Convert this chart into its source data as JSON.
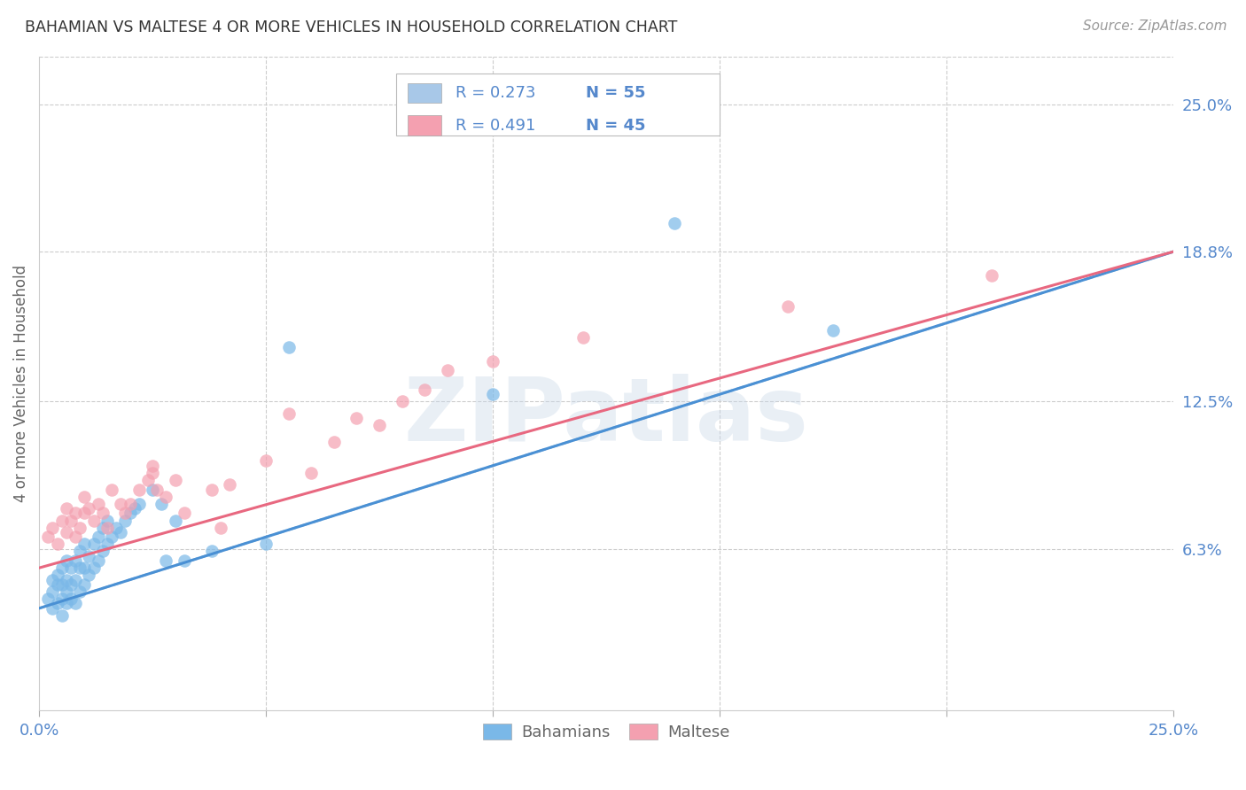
{
  "title": "BAHAMIAN VS MALTESE 4 OR MORE VEHICLES IN HOUSEHOLD CORRELATION CHART",
  "source": "Source: ZipAtlas.com",
  "ylabel": "4 or more Vehicles in Household",
  "xlim": [
    0.0,
    0.25
  ],
  "ylim": [
    -0.005,
    0.27
  ],
  "ytick_positions": [
    0.063,
    0.125,
    0.188,
    0.25
  ],
  "ytick_labels": [
    "6.3%",
    "12.5%",
    "18.8%",
    "25.0%"
  ],
  "legend_entries": [
    {
      "r_val": "R = 0.273",
      "n_val": "N = 55",
      "color": "#a8c8e8"
    },
    {
      "r_val": "R = 0.491",
      "n_val": "N = 45",
      "color": "#f4a0b0"
    }
  ],
  "watermark": "ZIPatlas",
  "bahamian_color": "#7ab8e8",
  "maltese_color": "#f4a0b0",
  "trend_bahamian_color": "#4a90d4",
  "trend_maltese_color": "#e86880",
  "trend_dashed_color": "#90b8d8",
  "background_color": "#ffffff",
  "grid_color": "#cccccc",
  "title_color": "#333333",
  "source_color": "#999999",
  "axis_label_color": "#666666",
  "tick_color": "#5588cc",
  "blue_trend_x0": 0.0,
  "blue_trend_y0": 0.038,
  "blue_trend_x1": 0.25,
  "blue_trend_y1": 0.188,
  "pink_trend_x0": 0.0,
  "pink_trend_y0": 0.055,
  "pink_trend_x1": 0.25,
  "pink_trend_y1": 0.188,
  "bahamian_x": [
    0.002,
    0.003,
    0.003,
    0.003,
    0.004,
    0.004,
    0.004,
    0.005,
    0.005,
    0.005,
    0.005,
    0.006,
    0.006,
    0.006,
    0.006,
    0.007,
    0.007,
    0.007,
    0.008,
    0.008,
    0.008,
    0.009,
    0.009,
    0.009,
    0.01,
    0.01,
    0.01,
    0.011,
    0.011,
    0.012,
    0.012,
    0.013,
    0.013,
    0.014,
    0.014,
    0.015,
    0.015,
    0.016,
    0.017,
    0.018,
    0.019,
    0.02,
    0.021,
    0.022,
    0.025,
    0.027,
    0.028,
    0.03,
    0.032,
    0.038,
    0.05,
    0.055,
    0.1,
    0.14,
    0.175
  ],
  "bahamian_y": [
    0.042,
    0.038,
    0.045,
    0.05,
    0.04,
    0.048,
    0.052,
    0.035,
    0.042,
    0.048,
    0.055,
    0.04,
    0.045,
    0.05,
    0.058,
    0.042,
    0.048,
    0.055,
    0.04,
    0.05,
    0.058,
    0.045,
    0.055,
    0.062,
    0.048,
    0.055,
    0.065,
    0.052,
    0.06,
    0.055,
    0.065,
    0.058,
    0.068,
    0.062,
    0.072,
    0.065,
    0.075,
    0.068,
    0.072,
    0.07,
    0.075,
    0.078,
    0.08,
    0.082,
    0.088,
    0.082,
    0.058,
    0.075,
    0.058,
    0.062,
    0.065,
    0.148,
    0.128,
    0.2,
    0.155
  ],
  "maltese_x": [
    0.002,
    0.003,
    0.004,
    0.005,
    0.006,
    0.006,
    0.007,
    0.008,
    0.008,
    0.009,
    0.01,
    0.01,
    0.011,
    0.012,
    0.013,
    0.014,
    0.015,
    0.016,
    0.018,
    0.019,
    0.02,
    0.022,
    0.024,
    0.025,
    0.025,
    0.026,
    0.028,
    0.03,
    0.032,
    0.038,
    0.04,
    0.042,
    0.05,
    0.055,
    0.06,
    0.065,
    0.07,
    0.075,
    0.08,
    0.085,
    0.09,
    0.1,
    0.12,
    0.165,
    0.21
  ],
  "maltese_y": [
    0.068,
    0.072,
    0.065,
    0.075,
    0.07,
    0.08,
    0.075,
    0.068,
    0.078,
    0.072,
    0.078,
    0.085,
    0.08,
    0.075,
    0.082,
    0.078,
    0.072,
    0.088,
    0.082,
    0.078,
    0.082,
    0.088,
    0.092,
    0.095,
    0.098,
    0.088,
    0.085,
    0.092,
    0.078,
    0.088,
    0.072,
    0.09,
    0.1,
    0.12,
    0.095,
    0.108,
    0.118,
    0.115,
    0.125,
    0.13,
    0.138,
    0.142,
    0.152,
    0.165,
    0.178
  ]
}
